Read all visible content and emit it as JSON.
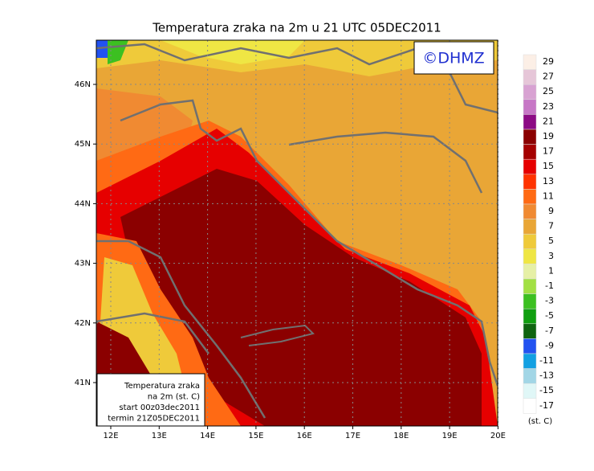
{
  "title": "Temperatura zraka na 2m u 21 UTC 05DEC2011",
  "logo": "©DHMZ",
  "latitude_labels": [
    "46N",
    "45N",
    "44N",
    "43N",
    "42N",
    "41N"
  ],
  "longitude_labels": [
    "12E",
    "13E",
    "14E",
    "15E",
    "16E",
    "17E",
    "18E",
    "19E",
    "20E"
  ],
  "legend": {
    "items": [
      {
        "label": "29",
        "color": "#fcefe6"
      },
      {
        "label": "27",
        "color": "#e6c6d8"
      },
      {
        "label": "25",
        "color": "#d8a2d2"
      },
      {
        "label": "23",
        "color": "#c777c6"
      },
      {
        "label": "21",
        "color": "#8c0a84"
      },
      {
        "label": "19",
        "color": "#8b0000"
      },
      {
        "label": "17",
        "color": "#a50000"
      },
      {
        "label": "15",
        "color": "#e60000"
      },
      {
        "label": "13",
        "color": "#ff3300"
      },
      {
        "label": "11",
        "color": "#ff6a14"
      },
      {
        "label": "9",
        "color": "#f08a32"
      },
      {
        "label": "7",
        "color": "#e9a636"
      },
      {
        "label": "5",
        "color": "#efca3a"
      },
      {
        "label": "3",
        "color": "#efe644"
      },
      {
        "label": "1",
        "color": "#e6f0a6"
      },
      {
        "label": "-1",
        "color": "#a2e044"
      },
      {
        "label": "-3",
        "color": "#3cc021"
      },
      {
        "label": "-5",
        "color": "#109f10"
      },
      {
        "label": "-7",
        "color": "#0f6410"
      },
      {
        "label": "-9",
        "color": "#2252f0"
      },
      {
        "label": "-11",
        "color": "#12a0e2"
      },
      {
        "label": "-13",
        "color": "#a2d6e6"
      },
      {
        "label": "-15",
        "color": "#e0f7f7"
      },
      {
        "label": "-17",
        "color": "#ffffff"
      }
    ],
    "unit": "(st. C)"
  },
  "info_box": [
    "Temperatura zraka",
    "na 2m (st. C)",
    "start 00z03dec2011",
    "termin 21Z05DEC2011"
  ]
}
